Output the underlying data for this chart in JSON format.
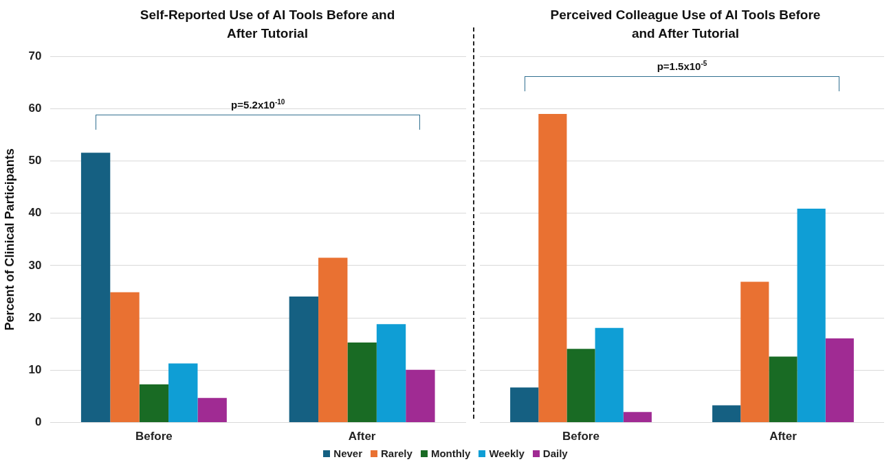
{
  "chart_data": [
    {
      "type": "bar",
      "title": "Self-Reported Use of AI Tools Before and After Tutorial",
      "ylabel": "Percent of Clinical Participants",
      "categories": [
        "Before",
        "After"
      ],
      "series": [
        {
          "name": "Never",
          "color": "#156082",
          "values": [
            51.6,
            24.1
          ]
        },
        {
          "name": "Rarely",
          "color": "#e97132",
          "values": [
            24.9,
            31.5
          ]
        },
        {
          "name": "Monthly",
          "color": "#196b24",
          "values": [
            7.3,
            15.3
          ]
        },
        {
          "name": "Weekly",
          "color": "#0f9ed5",
          "values": [
            11.3,
            18.8
          ]
        },
        {
          "name": "Daily",
          "color": "#a02b93",
          "values": [
            4.7,
            10.1
          ]
        }
      ],
      "ylim": [
        0,
        70
      ],
      "yticks": [
        0,
        10,
        20,
        30,
        40,
        50,
        60,
        70
      ],
      "grid": "y",
      "legend": "bottom",
      "annotations": [
        "p=5.2x10$^{-10}$"
      ]
    },
    {
      "type": "bar",
      "title": "Perceived Colleague Use of AI Tools Before and After Tutorial",
      "categories": [
        "Before",
        "After"
      ],
      "series": [
        {
          "color": "#156082",
          "values": [
            6.7,
            3.3
          ]
        },
        {
          "color": "#e97132",
          "values": [
            59.0,
            26.9
          ]
        },
        {
          "color": "#196b24",
          "values": [
            14.1,
            12.6
          ]
        },
        {
          "color": "#0f9ed5",
          "values": [
            18.1,
            40.9
          ]
        },
        {
          "color": "#a02b93",
          "values": [
            2.0,
            16.1
          ]
        }
      ],
      "ylim": [
        0,
        70
      ],
      "yticks": [
        0,
        10,
        20,
        30,
        40,
        50,
        60,
        70
      ],
      "grid": "y",
      "tick_labels": "x",
      "annotations": [
        "p=1.5x10$^{-5}$"
      ]
    }
  ]
}
